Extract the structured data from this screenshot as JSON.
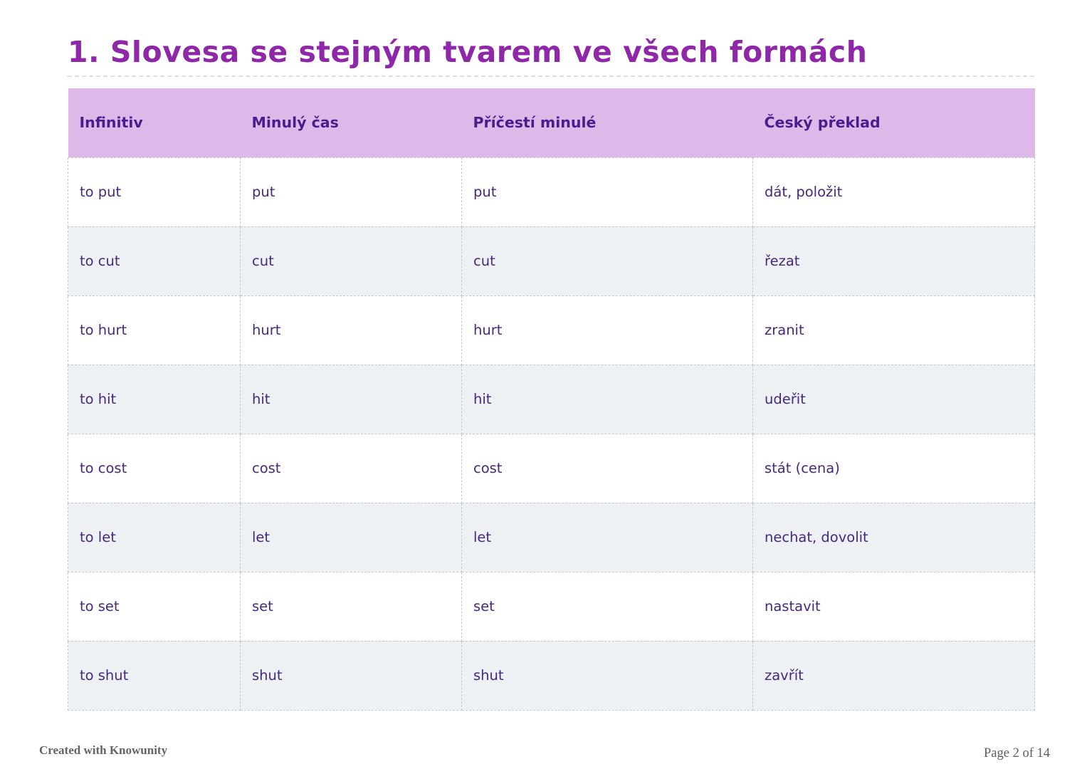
{
  "page": {
    "title": "1. Slovesa se stejným tvarem ve všech formách",
    "footer_left": "Created with Knowunity",
    "footer_right": "Page 2 of 14"
  },
  "colors": {
    "title_text": "#8e28a8",
    "header_bg": "#ddb8e9",
    "header_text": "#4c1b8e",
    "cell_text": "#46297f",
    "row_alt_bg": "#eef1f3",
    "dashed_border": "#c7c4d4"
  },
  "table": {
    "columns": [
      "Infinitiv",
      "Minulý čas",
      "Příčestí minulé",
      "Český překlad"
    ],
    "rows": [
      [
        "to put",
        "put",
        "put",
        "dát, položit"
      ],
      [
        "to cut",
        "cut",
        "cut",
        "řezat"
      ],
      [
        "to hurt",
        "hurt",
        "hurt",
        "zranit"
      ],
      [
        "to hit",
        "hit",
        "hit",
        "udeřit"
      ],
      [
        "to cost",
        "cost",
        "cost",
        "stát (cena)"
      ],
      [
        "to let",
        "let",
        "let",
        "nechat, dovolit"
      ],
      [
        "to set",
        "set",
        "set",
        "nastavit"
      ],
      [
        "to shut",
        "shut",
        "shut",
        "zavřít"
      ]
    ]
  }
}
